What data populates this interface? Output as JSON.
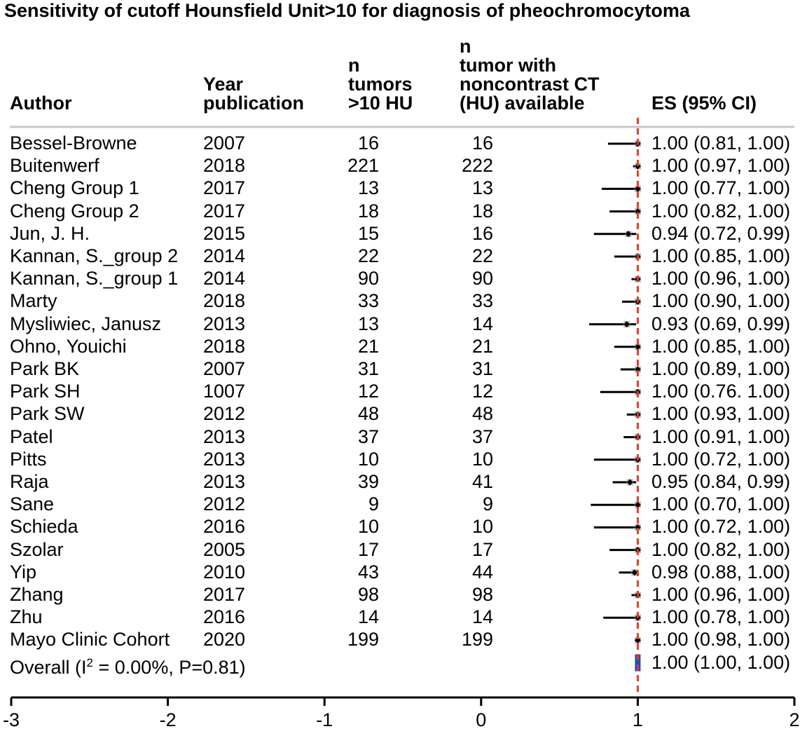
{
  "chart_data": {
    "type": "forest",
    "title": "Sensitivity of cutoff  Hounsfield Unit>10 for diagnosis of pheochromocytoma",
    "columns": {
      "author": "Author",
      "year": [
        "Year",
        "publication"
      ],
      "n_tumors": [
        "n",
        "tumors",
        ">10 HU"
      ],
      "n_ct": [
        "n",
        "tumor with",
        "noncontrast CT",
        "(HU) available"
      ],
      "es": "ES (95% CI)"
    },
    "xlim": [
      -3,
      2
    ],
    "xticks": [
      "-3",
      "-2",
      "-1",
      "0",
      "1",
      "2"
    ],
    "reference_line": 1,
    "studies": [
      {
        "author": "Bessel-Browne",
        "year": "2007",
        "n_tumors": "16",
        "n_ct": "16",
        "es": 1.0,
        "lo": 0.81,
        "hi": 1.0,
        "label": "1.00 (0.81, 1.00)"
      },
      {
        "author": "Buitenwerf",
        "year": "2018",
        "n_tumors": "221",
        "n_ct": "222",
        "es": 1.0,
        "lo": 0.97,
        "hi": 1.0,
        "label": "1.00 (0.97, 1.00)"
      },
      {
        "author": "Cheng Group 1",
        "year": "2017",
        "n_tumors": "13",
        "n_ct": "13",
        "es": 1.0,
        "lo": 0.77,
        "hi": 1.0,
        "label": "1.00 (0.77, 1.00)"
      },
      {
        "author": "Cheng Group 2",
        "year": "2017",
        "n_tumors": "18",
        "n_ct": "18",
        "es": 1.0,
        "lo": 0.82,
        "hi": 1.0,
        "label": "1.00 (0.82, 1.00)"
      },
      {
        "author": "Jun, J. H.",
        "year": "2015",
        "n_tumors": "15",
        "n_ct": "16",
        "es": 0.94,
        "lo": 0.72,
        "hi": 0.99,
        "label": "0.94 (0.72, 0.99)"
      },
      {
        "author": "Kannan, S._group 2",
        "year": "2014",
        "n_tumors": "22",
        "n_ct": "22",
        "es": 1.0,
        "lo": 0.85,
        "hi": 1.0,
        "label": "1.00 (0.85, 1.00)"
      },
      {
        "author": "Kannan, S._group 1",
        "year": "2014",
        "n_tumors": "90",
        "n_ct": "90",
        "es": 1.0,
        "lo": 0.96,
        "hi": 1.0,
        "label": "1.00 (0.96, 1.00)"
      },
      {
        "author": "Marty",
        "year": "2018",
        "n_tumors": "33",
        "n_ct": "33",
        "es": 1.0,
        "lo": 0.9,
        "hi": 1.0,
        "label": "1.00 (0.90, 1.00)"
      },
      {
        "author": "Mysliwiec, Janusz",
        "year": "2013",
        "n_tumors": "13",
        "n_ct": "14",
        "es": 0.93,
        "lo": 0.69,
        "hi": 0.99,
        "label": "0.93 (0.69, 0.99)"
      },
      {
        "author": "Ohno, Youichi",
        "year": "2018",
        "n_tumors": "21",
        "n_ct": "21",
        "es": 1.0,
        "lo": 0.85,
        "hi": 1.0,
        "label": "1.00 (0.85, 1.00)"
      },
      {
        "author": "Park BK",
        "year": "2007",
        "n_tumors": "31",
        "n_ct": "31",
        "es": 1.0,
        "lo": 0.89,
        "hi": 1.0,
        "label": "1.00 (0.89, 1.00)"
      },
      {
        "author": "Park SH",
        "year": "1007",
        "n_tumors": "12",
        "n_ct": "12",
        "es": 1.0,
        "lo": 0.76,
        "hi": 1.0,
        "label": "1.00 (0.76. 1.00)"
      },
      {
        "author": "Park SW",
        "year": "2012",
        "n_tumors": "48",
        "n_ct": "48",
        "es": 1.0,
        "lo": 0.93,
        "hi": 1.0,
        "label": "1.00 (0.93, 1.00)"
      },
      {
        "author": "Patel",
        "year": "2013",
        "n_tumors": "37",
        "n_ct": "37",
        "es": 1.0,
        "lo": 0.91,
        "hi": 1.0,
        "label": "1.00 (0.91, 1.00)"
      },
      {
        "author": "Pitts",
        "year": "2013",
        "n_tumors": "10",
        "n_ct": "10",
        "es": 1.0,
        "lo": 0.72,
        "hi": 1.0,
        "label": "1.00 (0.72, 1.00)"
      },
      {
        "author": "Raja",
        "year": "2013",
        "n_tumors": "39",
        "n_ct": "41",
        "es": 0.95,
        "lo": 0.84,
        "hi": 0.99,
        "label": "0.95 (0.84, 0.99)"
      },
      {
        "author": "Sane",
        "year": "2012",
        "n_tumors": "9",
        "n_ct": "9",
        "es": 1.0,
        "lo": 0.7,
        "hi": 1.0,
        "label": "1.00 (0.70, 1.00)"
      },
      {
        "author": "Schieda",
        "year": "2016",
        "n_tumors": "10",
        "n_ct": "10",
        "es": 1.0,
        "lo": 0.72,
        "hi": 1.0,
        "label": "1.00 (0.72, 1.00)"
      },
      {
        "author": "Szolar",
        "year": "2005",
        "n_tumors": "17",
        "n_ct": "17",
        "es": 1.0,
        "lo": 0.82,
        "hi": 1.0,
        "label": "1.00 (0.82, 1.00)"
      },
      {
        "author": "Yip",
        "year": "2010",
        "n_tumors": "43",
        "n_ct": "44",
        "es": 0.98,
        "lo": 0.88,
        "hi": 1.0,
        "label": "0.98 (0.88, 1.00)"
      },
      {
        "author": "Zhang",
        "year": "2017",
        "n_tumors": "98",
        "n_ct": "98",
        "es": 1.0,
        "lo": 0.96,
        "hi": 1.0,
        "label": "1.00 (0.96, 1.00)"
      },
      {
        "author": "Zhu",
        "year": "2016",
        "n_tumors": "14",
        "n_ct": "14",
        "es": 1.0,
        "lo": 0.78,
        "hi": 1.0,
        "label": "1.00 (0.78, 1.00)"
      },
      {
        "author": "Mayo Clinic Cohort",
        "year": "2020",
        "n_tumors": "199",
        "n_ct": "199",
        "es": 1.0,
        "lo": 0.98,
        "hi": 1.0,
        "label": "1.00 (0.98, 1.00)"
      }
    ],
    "overall": {
      "label_prefix": "Overall (I",
      "label_sup": "2",
      "label_suffix": " = 0.00%, P=0.81)",
      "es": 1.0,
      "lo": 1.0,
      "hi": 1.0,
      "es_label": "1.00 (1.00, 1.00)"
    },
    "colors": {
      "reference_line": "#d9412b",
      "overall_marker": "#1f4fb5",
      "ci_line": "#000000",
      "weight_box": "#b8b8b8",
      "header_rule": "#c8c8c8"
    }
  }
}
